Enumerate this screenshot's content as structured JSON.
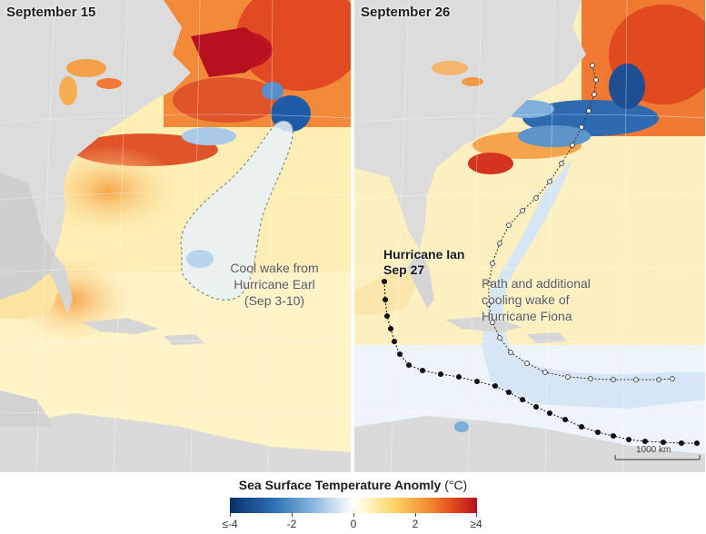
{
  "panels": [
    {
      "date": "September 15"
    },
    {
      "date": "September 26"
    }
  ],
  "annotations": {
    "earl": [
      "Cool wake from",
      "Hurricane Earl",
      "(Sep 3-10)"
    ],
    "ian": [
      "Hurricane Ian",
      "Sep 27"
    ],
    "fiona": [
      "Path and additional",
      "cooling wake of",
      "Hurricane Fiona"
    ]
  },
  "scale_bar": "1000 km",
  "legend": {
    "title": "Sea Surface Temperature Anomly",
    "unit": "(°C)",
    "ticks": [
      "≤-4",
      "-2",
      "0",
      "2",
      "≥4"
    ],
    "colors": {
      "min": "#08306b",
      "mid": "#ffffff",
      "max": "#b50f1f"
    }
  },
  "tracks": {
    "ian_marker": "filled-circle",
    "fiona_marker": "open-circle",
    "ian_color": "#111111",
    "fiona_color": "#333333"
  }
}
